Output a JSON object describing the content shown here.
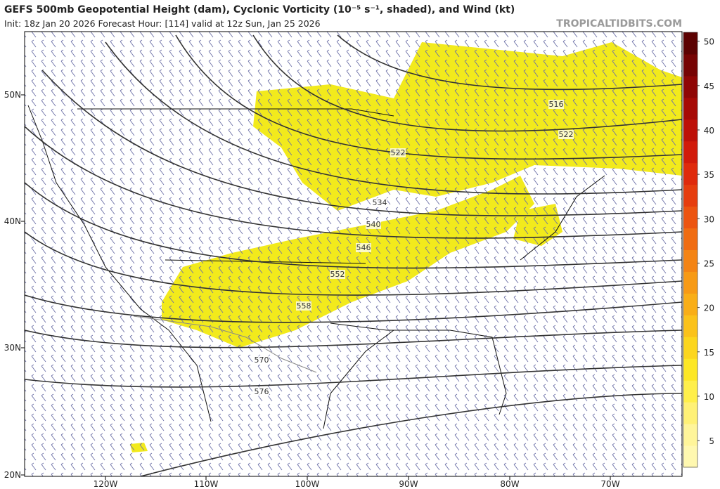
{
  "header": {
    "title": "GEFS 500mb Geopotential Height (dam), Cyclonic Vorticity (10⁻⁵ s⁻¹, shaded), and Wind (kt)",
    "subtitle": "Init: 18z Jan 20 2026   Forecast Hour: [114]   valid at 12z Sun, Jan 25 2026",
    "watermark": "TROPICALTIDBITS.COM"
  },
  "map": {
    "lat_labels": [
      "50N",
      "40N",
      "30N",
      "20N"
    ],
    "lon_labels": [
      "120W",
      "110W",
      "100W",
      "90W",
      "80W",
      "70W"
    ],
    "contour_labels": [
      "516",
      "522",
      "522",
      "534",
      "540",
      "546",
      "552",
      "558",
      "570",
      "576"
    ]
  },
  "colorbar": {
    "lim": [
      2,
      51
    ],
    "ticks": [
      5,
      10,
      15,
      20,
      25,
      30,
      35,
      40,
      45,
      50
    ],
    "colors": [
      "#fff8b0",
      "#fff59a",
      "#fff176",
      "#ffef4a",
      "#fde725",
      "#fcd61d",
      "#fbc21a",
      "#f9ae17",
      "#f79a15",
      "#f48414",
      "#f06c12",
      "#ec5410",
      "#e63d0e",
      "#df2a0c",
      "#d11a0a",
      "#bd1008",
      "#a60a06",
      "#8f0605",
      "#760404",
      "#5c0202"
    ]
  }
}
